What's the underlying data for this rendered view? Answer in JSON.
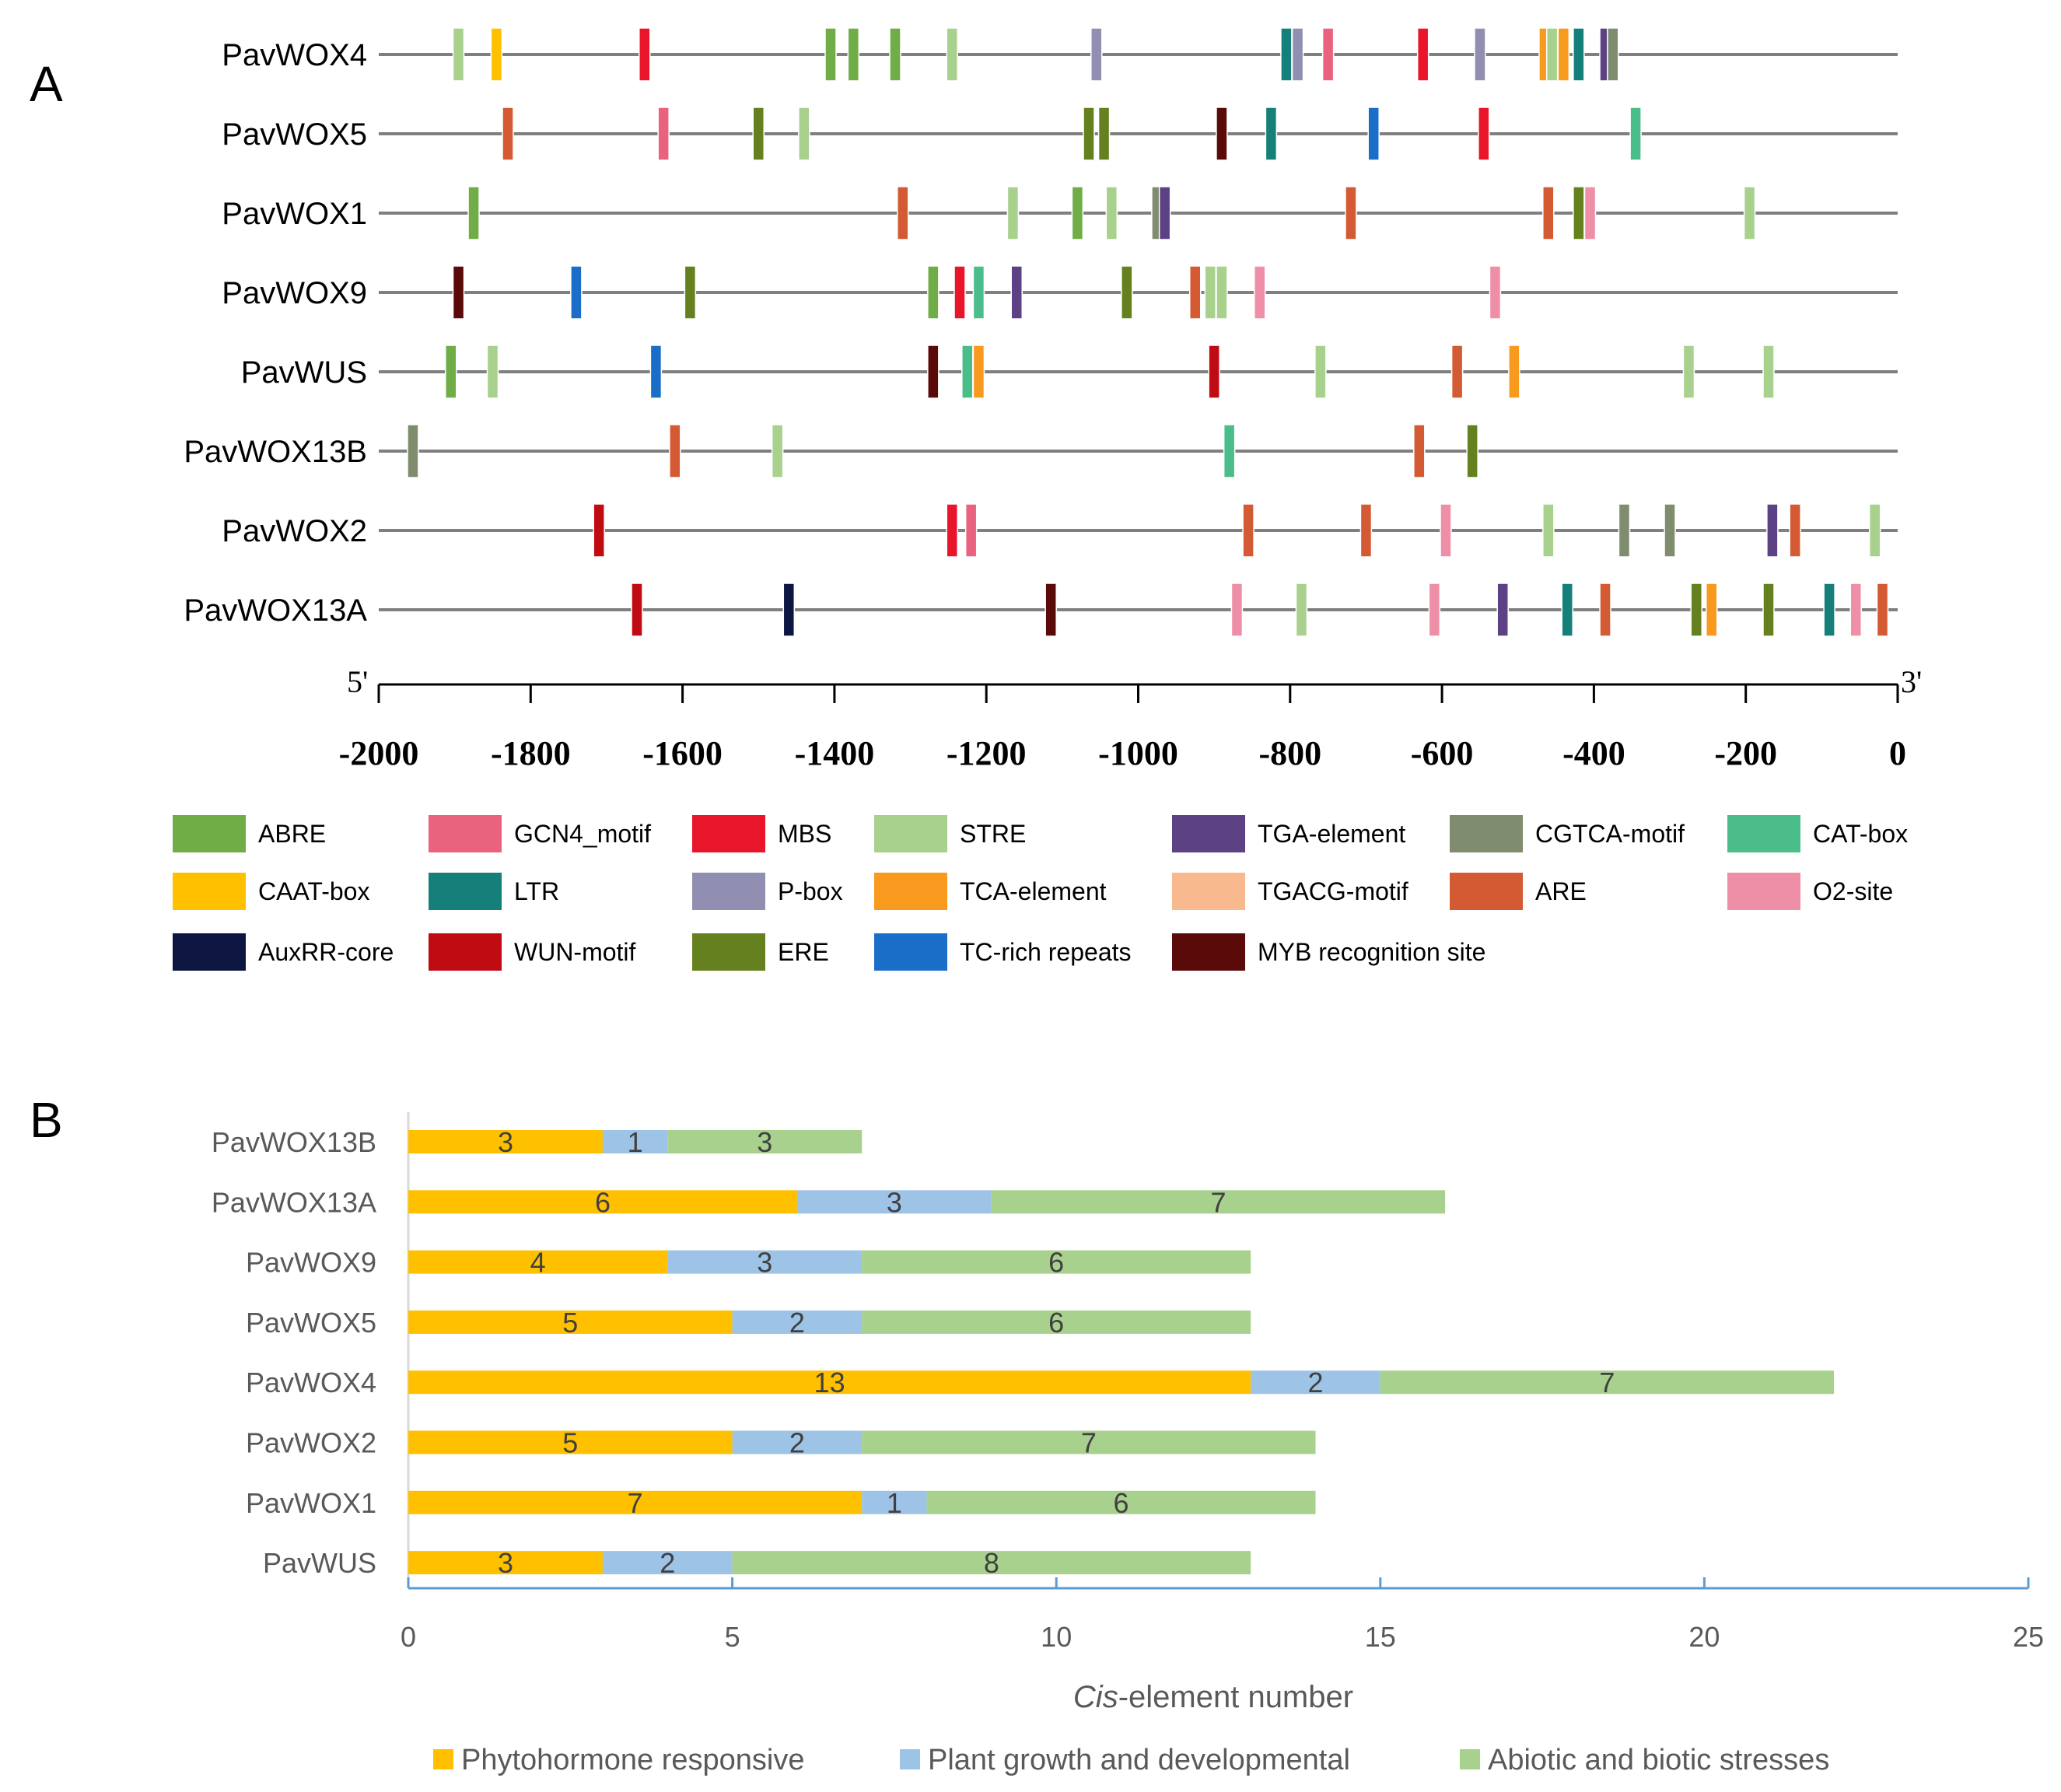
{
  "panel_a": {
    "label": "A",
    "axis": {
      "min": -2000,
      "max": 0,
      "ticks": [
        -2000,
        -1800,
        -1600,
        -1400,
        -1200,
        -1000,
        -800,
        -600,
        -400,
        -200,
        0
      ],
      "tick_labels": [
        "-2000",
        "-1800",
        "-1600",
        "-1400",
        "-1200",
        "-1000",
        "-800",
        "-600",
        "-400",
        "-200",
        "0"
      ],
      "left_label": "5'",
      "right_label": "3'"
    },
    "element_types": [
      {
        "name": "ABRE",
        "color": "#70ad47"
      },
      {
        "name": "GCN4_motif",
        "color": "#e9627e"
      },
      {
        "name": "MBS",
        "color": "#e8152b"
      },
      {
        "name": "STRE",
        "color": "#a9d18e"
      },
      {
        "name": "TGA-element",
        "color": "#5c4184"
      },
      {
        "name": "CGTCA-motif",
        "color": "#7f8c6e"
      },
      {
        "name": "CAT-box",
        "color": "#4bbd8b"
      },
      {
        "name": "CAAT-box",
        "color": "#ffc000"
      },
      {
        "name": "LTR",
        "color": "#15807a"
      },
      {
        "name": "P-box",
        "color": "#918fb1"
      },
      {
        "name": "TCA-element",
        "color": "#f79a1e"
      },
      {
        "name": "TGACG-motif",
        "color": "#f8b98f"
      },
      {
        "name": "ARE",
        "color": "#d35a32"
      },
      {
        "name": "O2-site",
        "color": "#ef8fa7"
      },
      {
        "name": "AuxRR-core",
        "color": "#0d1640"
      },
      {
        "name": "WUN-motif",
        "color": "#c00b12"
      },
      {
        "name": "ERE",
        "color": "#65801f"
      },
      {
        "name": "TC-rich repeats",
        "color": "#1b6ec7"
      },
      {
        "name": "MYB recognition site",
        "color": "#5b0a0a"
      }
    ],
    "genes": [
      {
        "name": "PavWOX4",
        "elements": [
          {
            "pos": -1895,
            "type": "STRE"
          },
          {
            "pos": -1845,
            "type": "CAAT-box"
          },
          {
            "pos": -1650,
            "type": "MBS"
          },
          {
            "pos": -1405,
            "type": "ABRE"
          },
          {
            "pos": -1375,
            "type": "ABRE"
          },
          {
            "pos": -1320,
            "type": "ABRE"
          },
          {
            "pos": -1245,
            "type": "STRE"
          },
          {
            "pos": -1055,
            "type": "P-box"
          },
          {
            "pos": -805,
            "type": "LTR"
          },
          {
            "pos": -790,
            "type": "P-box"
          },
          {
            "pos": -750,
            "type": "GCN4_motif"
          },
          {
            "pos": -625,
            "type": "MBS"
          },
          {
            "pos": -550,
            "type": "P-box"
          },
          {
            "pos": -465,
            "type": "TCA-element"
          },
          {
            "pos": -455,
            "type": "STRE"
          },
          {
            "pos": -440,
            "type": "TCA-element"
          },
          {
            "pos": -420,
            "type": "LTR"
          },
          {
            "pos": -385,
            "type": "TGA-element"
          },
          {
            "pos": -375,
            "type": "CGTCA-motif"
          }
        ]
      },
      {
        "name": "PavWOX5",
        "elements": [
          {
            "pos": -1830,
            "type": "ARE"
          },
          {
            "pos": -1625,
            "type": "GCN4_motif"
          },
          {
            "pos": -1500,
            "type": "ERE"
          },
          {
            "pos": -1440,
            "type": "STRE"
          },
          {
            "pos": -1065,
            "type": "ERE"
          },
          {
            "pos": -1045,
            "type": "ERE"
          },
          {
            "pos": -890,
            "type": "MYB recognition site"
          },
          {
            "pos": -825,
            "type": "LTR"
          },
          {
            "pos": -690,
            "type": "TC-rich repeats"
          },
          {
            "pos": -545,
            "type": "MBS"
          },
          {
            "pos": -345,
            "type": "CAT-box"
          }
        ]
      },
      {
        "name": "PavWOX1",
        "elements": [
          {
            "pos": -1875,
            "type": "ABRE"
          },
          {
            "pos": -1310,
            "type": "ARE"
          },
          {
            "pos": -1165,
            "type": "STRE"
          },
          {
            "pos": -1080,
            "type": "ABRE"
          },
          {
            "pos": -1035,
            "type": "STRE"
          },
          {
            "pos": -975,
            "type": "CGTCA-motif"
          },
          {
            "pos": -965,
            "type": "TGA-element"
          },
          {
            "pos": -720,
            "type": "ARE"
          },
          {
            "pos": -460,
            "type": "ARE"
          },
          {
            "pos": -420,
            "type": "ERE"
          },
          {
            "pos": -405,
            "type": "O2-site"
          },
          {
            "pos": -195,
            "type": "STRE"
          }
        ]
      },
      {
        "name": "PavWOX9",
        "elements": [
          {
            "pos": -1895,
            "type": "MYB recognition site"
          },
          {
            "pos": -1740,
            "type": "TC-rich repeats"
          },
          {
            "pos": -1590,
            "type": "ERE"
          },
          {
            "pos": -1270,
            "type": "ABRE"
          },
          {
            "pos": -1235,
            "type": "MBS"
          },
          {
            "pos": -1210,
            "type": "CAT-box"
          },
          {
            "pos": -1160,
            "type": "TGA-element"
          },
          {
            "pos": -1015,
            "type": "ERE"
          },
          {
            "pos": -925,
            "type": "ARE"
          },
          {
            "pos": -905,
            "type": "STRE"
          },
          {
            "pos": -890,
            "type": "STRE"
          },
          {
            "pos": -840,
            "type": "O2-site"
          },
          {
            "pos": -530,
            "type": "O2-site"
          }
        ]
      },
      {
        "name": "PavWUS",
        "elements": [
          {
            "pos": -1905,
            "type": "ABRE"
          },
          {
            "pos": -1850,
            "type": "STRE"
          },
          {
            "pos": -1635,
            "type": "TC-rich repeats"
          },
          {
            "pos": -1270,
            "type": "MYB recognition site"
          },
          {
            "pos": -1225,
            "type": "CAT-box"
          },
          {
            "pos": -1210,
            "type": "TCA-element"
          },
          {
            "pos": -900,
            "type": "WUN-motif"
          },
          {
            "pos": -760,
            "type": "STRE"
          },
          {
            "pos": -580,
            "type": "ARE"
          },
          {
            "pos": -505,
            "type": "TCA-element"
          },
          {
            "pos": -275,
            "type": "STRE"
          },
          {
            "pos": -170,
            "type": "STRE"
          }
        ]
      },
      {
        "name": "PavWOX13B",
        "elements": [
          {
            "pos": -1955,
            "type": "CGTCA-motif"
          },
          {
            "pos": -1610,
            "type": "ARE"
          },
          {
            "pos": -1475,
            "type": "STRE"
          },
          {
            "pos": -880,
            "type": "CAT-box"
          },
          {
            "pos": -630,
            "type": "ARE"
          },
          {
            "pos": -560,
            "type": "ERE"
          }
        ]
      },
      {
        "name": "PavWOX2",
        "elements": [
          {
            "pos": -1710,
            "type": "WUN-motif"
          },
          {
            "pos": -1245,
            "type": "MBS"
          },
          {
            "pos": -1220,
            "type": "GCN4_motif"
          },
          {
            "pos": -855,
            "type": "ARE"
          },
          {
            "pos": -700,
            "type": "ARE"
          },
          {
            "pos": -595,
            "type": "O2-site"
          },
          {
            "pos": -460,
            "type": "STRE"
          },
          {
            "pos": -360,
            "type": "CGTCA-motif"
          },
          {
            "pos": -300,
            "type": "CGTCA-motif"
          },
          {
            "pos": -165,
            "type": "TGA-element"
          },
          {
            "pos": -135,
            "type": "ARE"
          },
          {
            "pos": -30,
            "type": "STRE"
          }
        ]
      },
      {
        "name": "PavWOX13A",
        "elements": [
          {
            "pos": -1660,
            "type": "WUN-motif"
          },
          {
            "pos": -1460,
            "type": "AuxRR-core"
          },
          {
            "pos": -1115,
            "type": "MYB recognition site"
          },
          {
            "pos": -870,
            "type": "O2-site"
          },
          {
            "pos": -785,
            "type": "STRE"
          },
          {
            "pos": -610,
            "type": "O2-site"
          },
          {
            "pos": -520,
            "type": "TGA-element"
          },
          {
            "pos": -435,
            "type": "LTR"
          },
          {
            "pos": -385,
            "type": "ARE"
          },
          {
            "pos": -265,
            "type": "ERE"
          },
          {
            "pos": -245,
            "type": "TCA-element"
          },
          {
            "pos": -170,
            "type": "ERE"
          },
          {
            "pos": -90,
            "type": "LTR"
          },
          {
            "pos": -55,
            "type": "O2-site"
          },
          {
            "pos": -20,
            "type": "ARE"
          }
        ]
      }
    ]
  },
  "panel_b": {
    "label": "B",
    "chart_data": {
      "type": "bar",
      "orientation": "horizontal",
      "stacked": true,
      "categories": [
        "PavWOX13B",
        "PavWOX13A",
        "PavWOX9",
        "PavWOX5",
        "PavWOX4",
        "PavWOX2",
        "PavWOX1",
        "PavWUS"
      ],
      "series": [
        {
          "name": "Phytohormone responsive",
          "color": "#ffc000",
          "values": [
            3,
            6,
            4,
            5,
            13,
            5,
            7,
            3
          ]
        },
        {
          "name": "Plant growth and developmental",
          "color": "#9dc3e6",
          "values": [
            1,
            3,
            3,
            2,
            2,
            2,
            1,
            2
          ]
        },
        {
          "name": "Abiotic and biotic stresses",
          "color": "#a9d18e",
          "values": [
            3,
            7,
            6,
            6,
            7,
            7,
            6,
            8
          ]
        }
      ],
      "xlim": [
        0,
        25
      ],
      "xticks": [
        0,
        5,
        10,
        15,
        20,
        25
      ],
      "xtick_labels": [
        "0",
        "5",
        "10",
        "15",
        "20",
        "25"
      ],
      "xlabel_italic": "Cis",
      "xlabel_rest": "-element number",
      "axis_color": "#5b9bd5"
    }
  }
}
